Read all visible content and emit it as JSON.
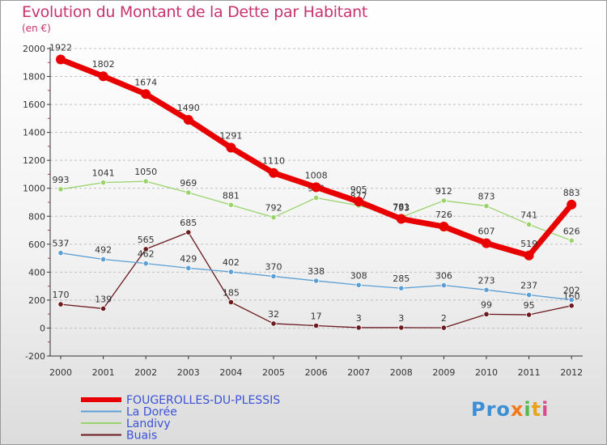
{
  "header": {
    "title": "Evolution du Montant de la Dette par Habitant",
    "subtitle": "(en €)"
  },
  "logo": {
    "text": [
      "Pro",
      "x",
      "i",
      "t",
      "i"
    ]
  },
  "colors": {
    "title": "#c8336c",
    "axis": "#333333",
    "grid": "#bfbfbf"
  },
  "chart_data": {
    "type": "line",
    "title": "Evolution du Montant de la Dette par Habitant",
    "ylabel": "(en €)",
    "xlabel": "",
    "x": [
      "2000",
      "2001",
      "2002",
      "2003",
      "2004",
      "2005",
      "2006",
      "2007",
      "2008",
      "2009",
      "2010",
      "2011",
      "2012"
    ],
    "ylim": [
      -200,
      2000
    ],
    "yticks": [
      -200,
      0,
      200,
      400,
      600,
      800,
      1000,
      1200,
      1400,
      1600,
      1800,
      2000
    ],
    "grid": "horizontal dashed",
    "legend": "bottom-left",
    "series": [
      {
        "name": "Buais",
        "color": "#6b1a1f",
        "values": [
          170,
          139,
          565,
          685,
          185,
          32,
          17,
          3,
          3,
          2,
          99,
          95,
          160
        ],
        "labels": [
          "170",
          "139",
          "565",
          "685",
          "185",
          "32",
          "17",
          "3",
          "3",
          "2",
          "99",
          "95",
          "160"
        ]
      },
      {
        "name": "Landivy",
        "color": "#9ad36b",
        "values": [
          993,
          1041,
          1050,
          969,
          881,
          792,
          932,
          877,
          793,
          912,
          873,
          741,
          626
        ],
        "labels": [
          "993",
          "1041",
          "1050",
          "969",
          "881",
          "792",
          "932",
          "877",
          "793",
          "912",
          "873",
          "741",
          "626"
        ]
      },
      {
        "name": "La Dorée",
        "color": "#5b9fd4",
        "values": [
          537,
          492,
          462,
          429,
          402,
          370,
          338,
          308,
          285,
          306,
          273,
          237,
          202
        ],
        "labels": [
          "537",
          "492",
          "462",
          "429",
          "402",
          "370",
          "338",
          "308",
          "285",
          "306",
          "273",
          "237",
          "202"
        ]
      },
      {
        "name": "FOUGEROLLES-DU-PLESSIS",
        "color": "#e80000",
        "values": [
          1922,
          1802,
          1674,
          1490,
          1291,
          1110,
          1008,
          905,
          781,
          726,
          607,
          519,
          883
        ],
        "labels": [
          "1922",
          "1802",
          "1674",
          "1490",
          "1291",
          "1110",
          "1008",
          "905",
          "781",
          "726",
          "607",
          "519",
          "883"
        ]
      }
    ],
    "legend_order": [
      "FOUGEROLLES-DU-PLESSIS",
      "La Dorée",
      "Landivy",
      "Buais"
    ]
  }
}
